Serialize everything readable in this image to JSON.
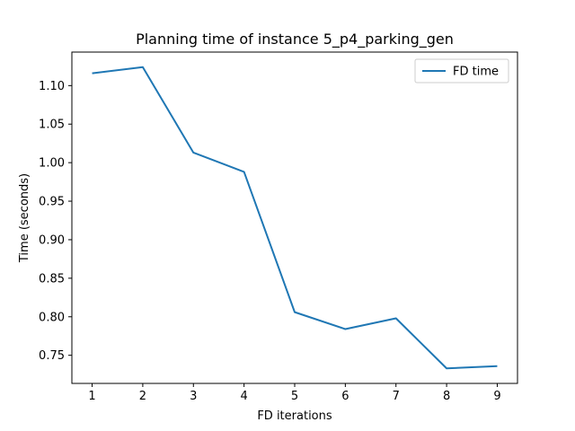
{
  "chart_data": {
    "type": "line",
    "title": "Planning time of instance 5_p4_parking_gen",
    "xlabel": "FD iterations",
    "ylabel": "Time (seconds)",
    "x": [
      1,
      2,
      3,
      4,
      5,
      6,
      7,
      8,
      9
    ],
    "xticks": [
      1,
      2,
      3,
      4,
      5,
      6,
      7,
      8,
      9
    ],
    "yticks": [
      0.75,
      0.8,
      0.85,
      0.9,
      0.95,
      1.0,
      1.05,
      1.1
    ],
    "ytick_labels": [
      "0.75",
      "0.80",
      "0.85",
      "0.90",
      "0.95",
      "1.00",
      "1.05",
      "1.10"
    ],
    "xlim": [
      0.6,
      9.4
    ],
    "ylim": [
      0.7135,
      1.1435
    ],
    "grid": false,
    "legend_position": "top-right",
    "series": [
      {
        "name": "FD time",
        "color": "#1f77b4",
        "values": [
          1.116,
          1.124,
          1.013,
          0.988,
          0.806,
          0.784,
          0.798,
          0.733,
          0.736
        ]
      }
    ]
  }
}
